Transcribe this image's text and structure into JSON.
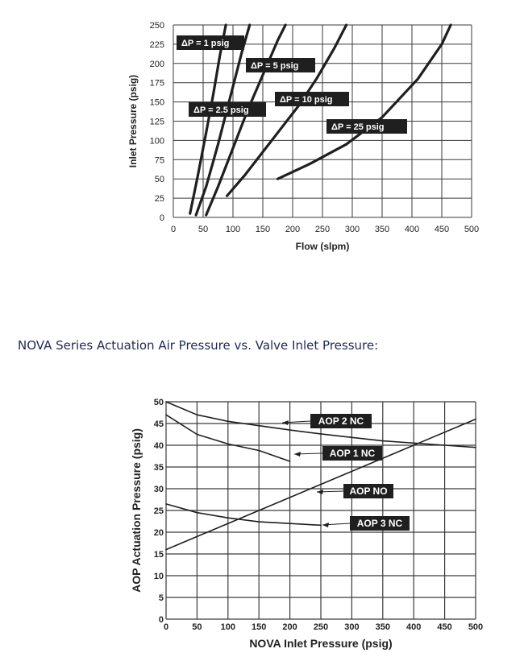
{
  "section_title": "NOVA Series  Actuation Air Pressure vs. Valve Inlet Pressure:",
  "colors": {
    "line": "#1f1f1f",
    "label_bg": "#1f1f1f",
    "label_text": "#ffffff",
    "grid": "#3a3a3a",
    "title": "#1e2a52"
  },
  "chart_data": [
    {
      "type": "line",
      "xlabel": "Flow (slpm)",
      "ylabel": "Inlet Pressure (psig)",
      "xlim": [
        0,
        500
      ],
      "ylim": [
        0,
        250
      ],
      "xticks": [
        0,
        50,
        100,
        150,
        200,
        250,
        300,
        350,
        400,
        450,
        500
      ],
      "yticks": [
        0,
        25,
        50,
        75,
        100,
        125,
        150,
        175,
        200,
        225,
        250
      ],
      "grid": true,
      "series": [
        {
          "name": "ΔP = 1 psig",
          "x": [
            28,
            40,
            55,
            67,
            78,
            88
          ],
          "y": [
            5,
            50,
            110,
            160,
            210,
            250
          ]
        },
        {
          "name": "ΔP = 2.5 psig",
          "x": [
            38,
            55,
            75,
            95,
            115,
            128
          ],
          "y": [
            3,
            40,
            95,
            155,
            215,
            250
          ]
        },
        {
          "name": "ΔP = 5 psig",
          "x": [
            55,
            75,
            100,
            125,
            150,
            175,
            188
          ],
          "y": [
            3,
            40,
            90,
            140,
            185,
            230,
            250
          ]
        },
        {
          "name": "ΔP = 10 psig",
          "x": [
            90,
            120,
            150,
            180,
            210,
            240,
            270,
            290
          ],
          "y": [
            28,
            55,
            85,
            115,
            145,
            180,
            220,
            250
          ]
        },
        {
          "name": "ΔP = 25 psig",
          "x": [
            175,
            230,
            290,
            350,
            410,
            450,
            465
          ],
          "y": [
            50,
            70,
            95,
            130,
            180,
            225,
            250
          ]
        }
      ]
    },
    {
      "type": "line",
      "xlabel": "NOVA Inlet Pressure (psig)",
      "ylabel": "AOP Actuation Pressure (psig)",
      "xlim": [
        0,
        500
      ],
      "ylim": [
        0,
        50
      ],
      "xticks": [
        0,
        50,
        100,
        150,
        200,
        250,
        300,
        350,
        400,
        450,
        500
      ],
      "yticks": [
        0,
        5,
        10,
        15,
        20,
        25,
        30,
        35,
        40,
        45,
        50
      ],
      "grid": true,
      "series": [
        {
          "name": "AOP 2 NC",
          "x": [
            0,
            50,
            100,
            150,
            200,
            250,
            300,
            350,
            400,
            450,
            500
          ],
          "y": [
            50,
            47,
            45.5,
            44.5,
            43.5,
            42.6,
            41.8,
            41,
            40.5,
            40,
            39.5
          ]
        },
        {
          "name": "AOP 1 NC",
          "x": [
            0,
            50,
            100,
            150,
            200
          ],
          "y": [
            47,
            42.5,
            40.3,
            38.8,
            36.3
          ]
        },
        {
          "name": "AOP NO",
          "x": [
            0,
            500
          ],
          "y": [
            16,
            46
          ]
        },
        {
          "name": "AOP 3 NC",
          "x": [
            0,
            50,
            100,
            150,
            200,
            250
          ],
          "y": [
            26.5,
            24.5,
            23.3,
            22.4,
            22,
            21.6
          ]
        }
      ]
    }
  ]
}
